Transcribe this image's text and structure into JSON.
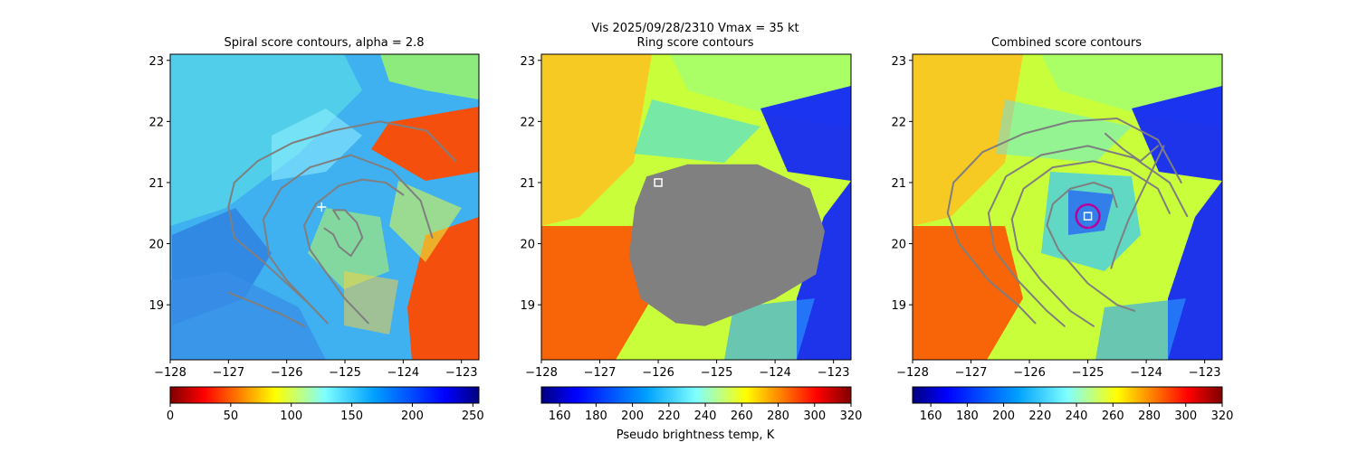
{
  "figure": {
    "suptitle_line1": "Vis  2025/09/28/2310    Vmax = 35 kt",
    "colorbar_label": "Pseudo brightness temp, K"
  },
  "chart_data": [
    {
      "type": "heatmap",
      "title": "Spiral score contours, alpha =  2.8",
      "xlim": [
        -128,
        -122.7
      ],
      "ylim": [
        18.1,
        23.1
      ],
      "xticks": [
        -128,
        -127,
        -126,
        -125,
        -124,
        -123
      ],
      "xtick_labels": [
        "−128",
        "−127",
        "−126",
        "−125",
        "−124",
        "−123"
      ],
      "yticks": [
        19,
        20,
        21,
        22,
        23
      ],
      "ytick_labels": [
        "19",
        "20",
        "21",
        "22",
        "23"
      ],
      "colorbar": {
        "range": [
          0,
          255
        ],
        "ticks": [
          0,
          50,
          100,
          150,
          200,
          250
        ],
        "tick_labels": [
          "0",
          "50",
          "100",
          "150",
          "200",
          "250"
        ],
        "colormap": "jet"
      },
      "marker": {
        "kind": "plus",
        "lon": -125.4,
        "lat": 20.6
      },
      "contours": [
        [
          [
            -125.1,
            20.4
          ],
          [
            -125.2,
            20.55
          ],
          [
            -125.0,
            20.55
          ],
          [
            -124.8,
            20.35
          ],
          [
            -124.7,
            20.1
          ],
          [
            -124.9,
            19.8
          ],
          [
            -125.1,
            19.95
          ],
          [
            -125.2,
            20.15
          ],
          [
            -125.35,
            20.25
          ]
        ],
        [
          [
            -124.0,
            20.8
          ],
          [
            -124.3,
            21.0
          ],
          [
            -124.7,
            21.05
          ],
          [
            -125.1,
            20.95
          ],
          [
            -125.5,
            20.65
          ],
          [
            -125.7,
            20.3
          ],
          [
            -125.6,
            19.9
          ],
          [
            -125.3,
            19.5
          ],
          [
            -125.0,
            19.1
          ],
          [
            -124.6,
            18.7
          ]
        ],
        [
          [
            -123.5,
            20.1
          ],
          [
            -123.7,
            20.7
          ],
          [
            -124.2,
            21.2
          ],
          [
            -124.9,
            21.45
          ],
          [
            -125.6,
            21.25
          ],
          [
            -126.1,
            20.9
          ],
          [
            -126.4,
            20.4
          ],
          [
            -126.3,
            19.8
          ],
          [
            -126.0,
            19.4
          ],
          [
            -125.4,
            18.8
          ]
        ],
        [
          [
            -123.1,
            21.35
          ],
          [
            -123.6,
            21.85
          ],
          [
            -124.4,
            22.0
          ],
          [
            -125.2,
            21.85
          ],
          [
            -125.9,
            21.65
          ],
          [
            -126.5,
            21.35
          ],
          [
            -126.9,
            21.0
          ],
          [
            -127.0,
            20.6
          ],
          [
            -126.9,
            20.1
          ],
          [
            -126.4,
            19.7
          ],
          [
            -125.6,
            19.0
          ],
          [
            -125.3,
            18.7
          ]
        ],
        [
          [
            -127.0,
            19.2
          ],
          [
            -126.6,
            19.05
          ],
          [
            -126.1,
            18.85
          ],
          [
            -125.7,
            18.65
          ]
        ]
      ]
    },
    {
      "type": "heatmap",
      "title": "Ring score contours",
      "xlim": [
        -128,
        -122.7
      ],
      "ylim": [
        18.1,
        23.1
      ],
      "xticks": [
        -128,
        -127,
        -126,
        -125,
        -124,
        -123
      ],
      "xtick_labels": [
        "−128",
        "−127",
        "−126",
        "−125",
        "−124",
        "−123"
      ],
      "yticks": [
        19,
        20,
        21,
        22,
        23
      ],
      "ytick_labels": [
        "19",
        "20",
        "21",
        "22",
        "23"
      ],
      "colorbar": {
        "range": [
          150,
          320
        ],
        "ticks": [
          160,
          180,
          200,
          220,
          240,
          260,
          280,
          300,
          320
        ],
        "tick_labels": [
          "160",
          "180",
          "200",
          "220",
          "240",
          "260",
          "280",
          "300",
          "320"
        ],
        "colormap": "jet_r"
      },
      "marker": {
        "kind": "square",
        "lon": -126.0,
        "lat": 21.0
      },
      "gray_region": [
        [
          -125.5,
          21.3
        ],
        [
          -124.3,
          21.3
        ],
        [
          -123.4,
          20.9
        ],
        [
          -123.15,
          20.2
        ],
        [
          -123.3,
          19.5
        ],
        [
          -124.0,
          19.1
        ],
        [
          -124.8,
          18.8
        ],
        [
          -125.2,
          18.65
        ],
        [
          -125.7,
          18.7
        ],
        [
          -126.3,
          19.1
        ],
        [
          -126.5,
          19.8
        ],
        [
          -126.4,
          20.6
        ],
        [
          -126.2,
          21.1
        ]
      ]
    },
    {
      "type": "heatmap",
      "title": "Combined score contours",
      "xlim": [
        -128,
        -122.7
      ],
      "ylim": [
        18.1,
        23.1
      ],
      "xticks": [
        -128,
        -127,
        -126,
        -125,
        -124,
        -123
      ],
      "xtick_labels": [
        "−128",
        "−127",
        "−126",
        "−125",
        "−124",
        "−123"
      ],
      "yticks": [
        19,
        20,
        21,
        22,
        23
      ],
      "ytick_labels": [
        "19",
        "20",
        "21",
        "22",
        "23"
      ],
      "colorbar": {
        "range": [
          150,
          320
        ],
        "ticks": [
          160,
          180,
          200,
          220,
          240,
          260,
          280,
          300,
          320
        ],
        "tick_labels": [
          "160",
          "180",
          "200",
          "220",
          "240",
          "260",
          "280",
          "300",
          "320"
        ],
        "colormap": "jet_r"
      },
      "marker": {
        "kind": "square",
        "lon": -125.0,
        "lat": 20.45
      },
      "circle": {
        "lon": -125.0,
        "lat": 20.45,
        "radius_deg": 0.2
      },
      "contours": [
        [
          [
            -124.5,
            20.6
          ],
          [
            -124.6,
            20.9
          ],
          [
            -124.9,
            21.0
          ],
          [
            -125.3,
            20.9
          ],
          [
            -125.6,
            20.65
          ],
          [
            -125.7,
            20.3
          ],
          [
            -125.5,
            19.9
          ],
          [
            -125.0,
            19.35
          ],
          [
            -124.5,
            19.0
          ],
          [
            -124.2,
            18.9
          ]
        ],
        [
          [
            -123.6,
            20.5
          ],
          [
            -123.8,
            20.9
          ],
          [
            -124.3,
            21.2
          ],
          [
            -124.9,
            21.35
          ],
          [
            -125.6,
            21.25
          ],
          [
            -126.1,
            20.9
          ],
          [
            -126.3,
            20.4
          ],
          [
            -126.2,
            19.9
          ],
          [
            -125.8,
            19.4
          ],
          [
            -125.3,
            18.9
          ],
          [
            -124.9,
            18.65
          ]
        ],
        [
          [
            -123.3,
            20.45
          ],
          [
            -123.6,
            21.0
          ],
          [
            -124.2,
            21.4
          ],
          [
            -125.0,
            21.6
          ],
          [
            -125.8,
            21.45
          ],
          [
            -126.4,
            21.1
          ],
          [
            -126.7,
            20.5
          ],
          [
            -126.6,
            19.9
          ],
          [
            -126.2,
            19.4
          ],
          [
            -125.7,
            18.9
          ],
          [
            -125.4,
            18.65
          ]
        ],
        [
          [
            -123.4,
            21.0
          ],
          [
            -123.8,
            21.7
          ],
          [
            -124.5,
            22.05
          ],
          [
            -125.3,
            22.0
          ],
          [
            -126.1,
            21.8
          ],
          [
            -126.8,
            21.5
          ],
          [
            -127.3,
            21.0
          ],
          [
            -127.4,
            20.5
          ],
          [
            -127.2,
            20.0
          ],
          [
            -126.7,
            19.4
          ],
          [
            -126.2,
            19.0
          ],
          [
            -125.9,
            18.7
          ]
        ],
        [
          [
            -123.7,
            21.6
          ],
          [
            -124.0,
            21.0
          ],
          [
            -124.3,
            20.4
          ],
          [
            -124.5,
            19.9
          ],
          [
            -124.6,
            19.6
          ]
        ],
        [
          [
            -123.8,
            21.6
          ],
          [
            -124.1,
            21.35
          ],
          [
            -124.4,
            21.55
          ],
          [
            -124.7,
            21.8
          ]
        ]
      ]
    }
  ]
}
